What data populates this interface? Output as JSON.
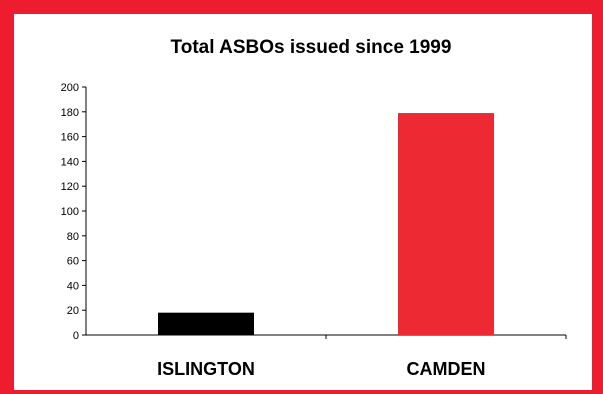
{
  "chart_data": {
    "type": "bar",
    "title": "Total ASBOs issued since 1999",
    "xlabel": "",
    "ylabel": "",
    "categories": [
      "ISLINGTON",
      "CAMDEN"
    ],
    "values": [
      18,
      179
    ],
    "bar_colors": [
      "#000000",
      "#ed2a34"
    ],
    "ylim": [
      0,
      200
    ],
    "yticks": [
      0,
      20,
      40,
      60,
      80,
      100,
      120,
      140,
      160,
      180,
      200
    ],
    "grid": false,
    "legend": "none"
  },
  "colors": {
    "frame": "#ed1c2e",
    "background": "#ffffff"
  }
}
